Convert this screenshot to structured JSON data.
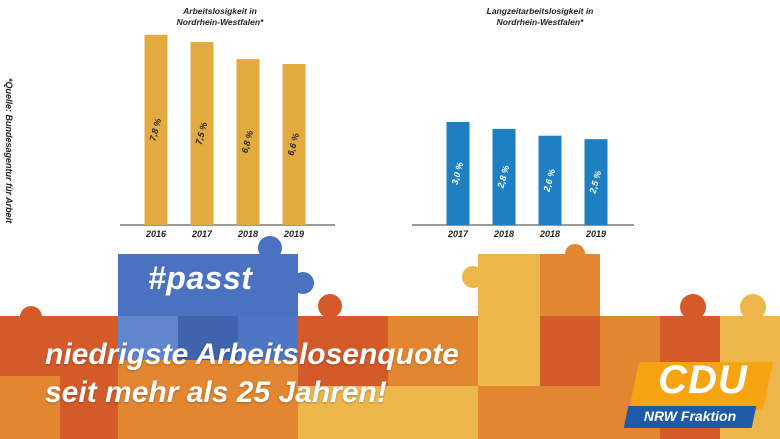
{
  "source_note": "*Quelle: Bundesagentur für Arbeit",
  "chart_data": [
    {
      "type": "bar",
      "title_lines": [
        "Arbeitslosigkeit in",
        "Nordrhein-Westfalen*"
      ],
      "categories": [
        "2016",
        "2017",
        "2018",
        "2019"
      ],
      "values": [
        7.8,
        7.5,
        6.8,
        6.6
      ],
      "value_labels": [
        "7,8 %",
        "7,5 %",
        "6,8 %",
        "6,6 %"
      ],
      "ylim": [
        0,
        8.2
      ],
      "color": "#e3ab3f"
    },
    {
      "type": "bar",
      "title_lines": [
        "Langzeitarbeitslosigkeit in",
        "Nordrhein-Westfalen*"
      ],
      "categories": [
        "2017",
        "2018",
        "2018",
        "2019"
      ],
      "values": [
        3.0,
        2.8,
        2.6,
        2.5
      ],
      "value_labels": [
        "3,0 %",
        "2,8 %",
        "2,6 %",
        "2,5 %"
      ],
      "ylim": [
        0,
        6.0
      ],
      "color": "#1e7fc2"
    }
  ],
  "hashtag": "#passt",
  "slogan": [
    "niedrigste Arbeitslosenquote",
    "seit mehr als 25 Jahren!"
  ],
  "logo": {
    "brand": "CDU",
    "sub": "NRW Fraktion"
  },
  "colors": {
    "puzzle_blue": "#4a72c0",
    "puzzle_orange": "#e2862f",
    "puzzle_red": "#d45a2a",
    "puzzle_gold": "#edb64a",
    "logo_orange": "#f6a412",
    "logo_blue": "#1f5aa6"
  }
}
